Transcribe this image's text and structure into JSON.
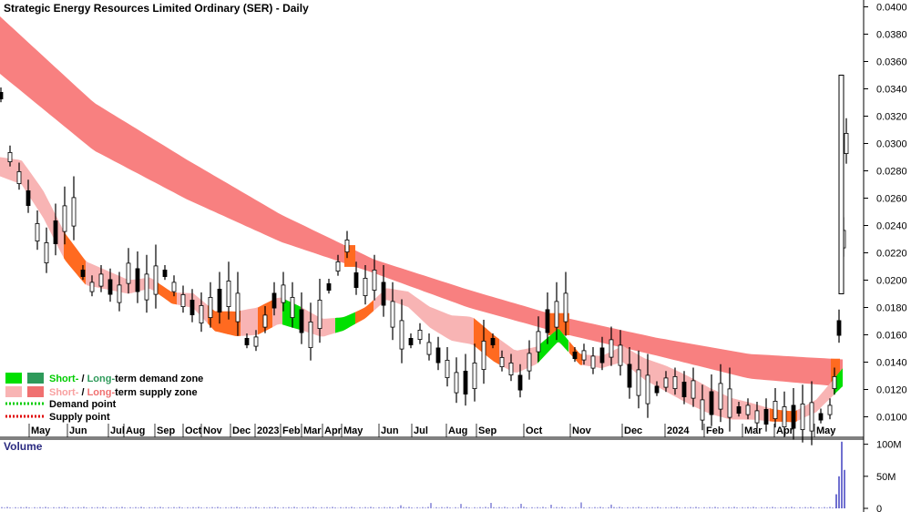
{
  "chart_data": {
    "type": "candlestick",
    "title": "Strategic Energy Resources Limited Ordinary (SER) - Daily",
    "price_axis": {
      "ylim": [
        0.0085,
        0.0405
      ],
      "ticks": [
        "0.0400",
        "0.0380",
        "0.0360",
        "0.0340",
        "0.0320",
        "0.0300",
        "0.0280",
        "0.0260",
        "0.0240",
        "0.0220",
        "0.0200",
        "0.0180",
        "0.0160",
        "0.0140",
        "0.0120",
        "0.0100"
      ]
    },
    "month_labels": [
      "May",
      "Jun",
      "Jul",
      "Aug",
      "Sep",
      "Oct",
      "Nov",
      "Dec",
      "2023",
      "Feb",
      "Mar",
      "Apr",
      "May",
      "Jun",
      "Jul",
      "Aug",
      "Sep",
      "Oct",
      "Nov",
      "Dec",
      "2024",
      "Feb",
      "Mar",
      "Apr",
      "May"
    ],
    "legend": {
      "demand": {
        "short": "Short-",
        "sep": " / ",
        "long": "Long-",
        "rest": "term demand zone"
      },
      "supply": {
        "short": "Short-",
        "sep": " / ",
        "long": "Long-",
        "rest": "term supply zone"
      },
      "demand_point": "Demand point",
      "supply_point": "Supply point"
    },
    "volume_axis": {
      "title": "Volume",
      "ylim": [
        0,
        108
      ],
      "ticks": [
        "100M",
        "50M",
        "0"
      ]
    },
    "long_term_band": {
      "upper": [
        0.0393,
        0.033,
        0.0288,
        0.0248,
        0.0215,
        0.0193,
        0.0173,
        0.0158,
        0.0146,
        0.0142
      ],
      "lower": [
        0.0351,
        0.0295,
        0.0259,
        0.0228,
        0.0205,
        0.018,
        0.0161,
        0.0145,
        0.0128,
        0.0122
      ]
    },
    "short_term_band": {
      "mid": [
        0.0283,
        0.0279,
        0.0256,
        0.0225,
        0.0205,
        0.02,
        0.0195,
        0.0198,
        0.0187,
        0.0185,
        0.017,
        0.0168,
        0.017,
        0.0178,
        0.0172,
        0.0165,
        0.0168,
        0.0176,
        0.019,
        0.0186,
        0.0173,
        0.0165,
        0.0163,
        0.015,
        0.014,
        0.0145,
        0.016,
        0.0142,
        0.014,
        0.0146,
        0.0135,
        0.0128,
        0.012,
        0.0112,
        0.0106,
        0.0104,
        0.0101,
        0.01,
        0.0108,
        0.0125
      ],
      "end_x_fraction": 0.97
    },
    "colors": {
      "long_supply": "#f88080",
      "short_supply": "#f8b4b4",
      "short_demand": "#00e000",
      "long_demand": "#2e9a5a",
      "highlight": "#ff6a20",
      "demand_point": "#00cc00",
      "supply_point": "#e00000",
      "volume": "#4040c0",
      "grid": "#e8e8e8"
    }
  }
}
